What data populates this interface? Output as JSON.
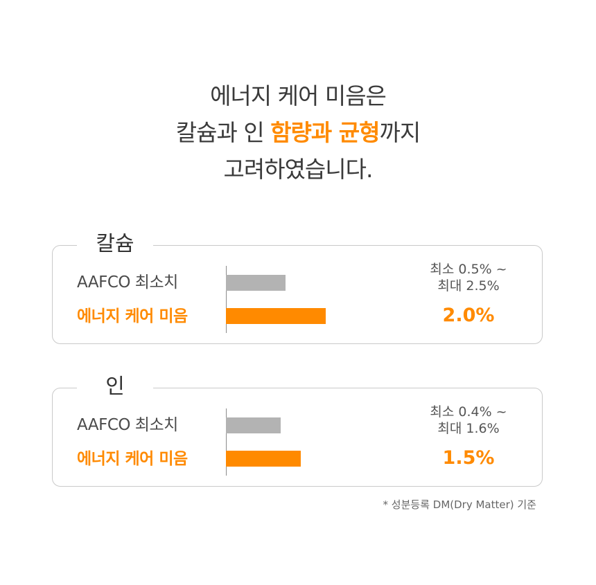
{
  "headline": {
    "line1": "에너지 케어 미음은",
    "line2_before": "칼슘과 인 ",
    "line2_accent": "함량과 균형",
    "line2_after": "까지",
    "line3": "고려하였습니다."
  },
  "colors": {
    "accent": "#ff8a00",
    "aafco_bar": "#b3b3b3",
    "border": "#c9c9c9"
  },
  "chart_data": [
    {
      "type": "bar",
      "orientation": "horizontal",
      "title": "칼슘",
      "categories": [
        "AAFCO 최소치",
        "에너지 케어 미음"
      ],
      "values": [
        1.2,
        2.0
      ],
      "unit": "%",
      "range_line1": "최소 0.5% ~",
      "range_line2": "최대 2.5%",
      "value_label": "2.0%"
    },
    {
      "type": "bar",
      "orientation": "horizontal",
      "title": "인",
      "categories": [
        "AAFCO 최소치",
        "에너지 케어 미음"
      ],
      "values": [
        1.1,
        1.5
      ],
      "unit": "%",
      "range_line1": "최소 0.4% ~",
      "range_line2": "최대 1.6%",
      "value_label": "1.5%"
    }
  ],
  "footnote": "*  성분등록 DM(Dry Matter) 기준"
}
